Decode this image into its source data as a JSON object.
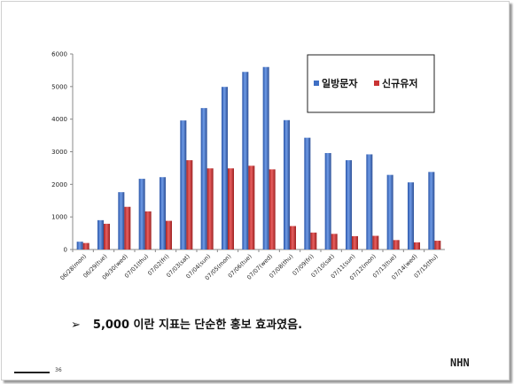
{
  "chart_data": {
    "type": "bar",
    "categories": [
      "06/28(mon)",
      "06/29(tue)",
      "06/30(wed)",
      "07/01(thu)",
      "07/02(fri)",
      "07/03(sat)",
      "07/04(sun)",
      "07/05(mon)",
      "07/06(tue)",
      "07/07(wed)",
      "07/08(thu)",
      "07/09(fri)",
      "07/10(sat)",
      "07/11(sun)",
      "07/12(mon)",
      "07/13(tue)",
      "07/14(wed)",
      "07/15(thu)"
    ],
    "series": [
      {
        "name": "일방문자",
        "color": "#3f6fc4",
        "values": [
          240,
          900,
          1760,
          2170,
          2220,
          3960,
          4340,
          4990,
          5450,
          5600,
          3970,
          3430,
          2960,
          2740,
          2920,
          2290,
          2060,
          2380
        ]
      },
      {
        "name": "신규유저",
        "color": "#c93434",
        "values": [
          200,
          790,
          1310,
          1170,
          880,
          2740,
          2490,
          2490,
          2570,
          2460,
          720,
          520,
          480,
          410,
          420,
          290,
          220,
          270
        ]
      }
    ],
    "yticks": [
      "0",
      "1000",
      "2000",
      "3000",
      "4000",
      "5000",
      "6000"
    ],
    "ylim": [
      0,
      6000
    ],
    "grid": false,
    "legend": "top-right",
    "title": "",
    "xlabel": "",
    "ylabel": ""
  },
  "bullet": {
    "marker": "➢",
    "text": "5,000 이란 지표는 단순한 홍보 효과였음."
  },
  "footer": {
    "page_number": "36",
    "logo": "NHN"
  }
}
